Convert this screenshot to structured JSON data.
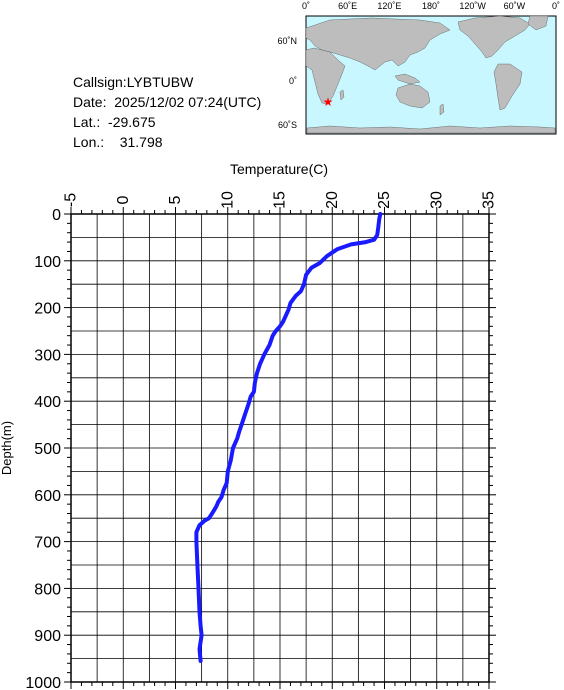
{
  "station": {
    "callsign": "Callsign:LYBTUBW",
    "date": "Date:  2025/12/02 07:24(UTC)",
    "lat_label": "Lat.:",
    "lat_value": "-29.675",
    "lon_label": "Lon.:",
    "lon_value": "31.798"
  },
  "map": {
    "top_labels": [
      "0˚",
      "60˚E",
      "120˚E",
      "180˚",
      "120˚W",
      "60˚W",
      "0˚"
    ],
    "side_labels": [
      "60˚N",
      "0˚",
      "60˚S"
    ],
    "colors": {
      "ocean": "#c8f7ff",
      "land": "#bdbdbd",
      "marker": "#ff0000"
    },
    "marker_icon": "red-star-icon"
  },
  "chart_data": {
    "type": "line",
    "xlabel": "Temperature(C)",
    "ylabel": "Depth(m)",
    "xlim": [
      -5,
      35
    ],
    "ylim": [
      1000,
      0
    ],
    "x_ticks": [
      "-5",
      "0",
      "5",
      "10",
      "15",
      "20",
      "25",
      "30",
      "35"
    ],
    "y_ticks": [
      "0",
      "100",
      "200",
      "300",
      "400",
      "500",
      "600",
      "700",
      "800",
      "900",
      "1000"
    ],
    "grid": true,
    "line_color": "#1a1aff",
    "series": [
      {
        "x": [
          24.6,
          24.5,
          24.4,
          24.3,
          24.0,
          23.2,
          21.8,
          20.5,
          19.5,
          18.8,
          18.0,
          17.5,
          17.3,
          17.0,
          16.5,
          16.0,
          15.8,
          15.5,
          15.3,
          15.0,
          14.6,
          14.3,
          14.0,
          13.5,
          13.1,
          12.8,
          12.6,
          12.5,
          12.2,
          12.0,
          11.7,
          11.4,
          11.1,
          10.9,
          10.5,
          10.3,
          10.0,
          9.9,
          9.6,
          9.4,
          9.1,
          8.9,
          8.5,
          8.2,
          7.8,
          7.3,
          7.0,
          7.0,
          7.1,
          7.2,
          7.3,
          7.4,
          7.5,
          7.3,
          7.4
        ],
        "y": [
          0,
          10,
          30,
          45,
          55,
          60,
          65,
          75,
          90,
          105,
          115,
          130,
          150,
          165,
          175,
          190,
          205,
          220,
          230,
          240,
          250,
          260,
          280,
          300,
          320,
          340,
          360,
          380,
          390,
          405,
          425,
          445,
          465,
          480,
          500,
          525,
          550,
          575,
          590,
          605,
          615,
          625,
          640,
          650,
          655,
          665,
          680,
          700,
          750,
          800,
          850,
          880,
          900,
          930,
          955
        ]
      }
    ]
  }
}
